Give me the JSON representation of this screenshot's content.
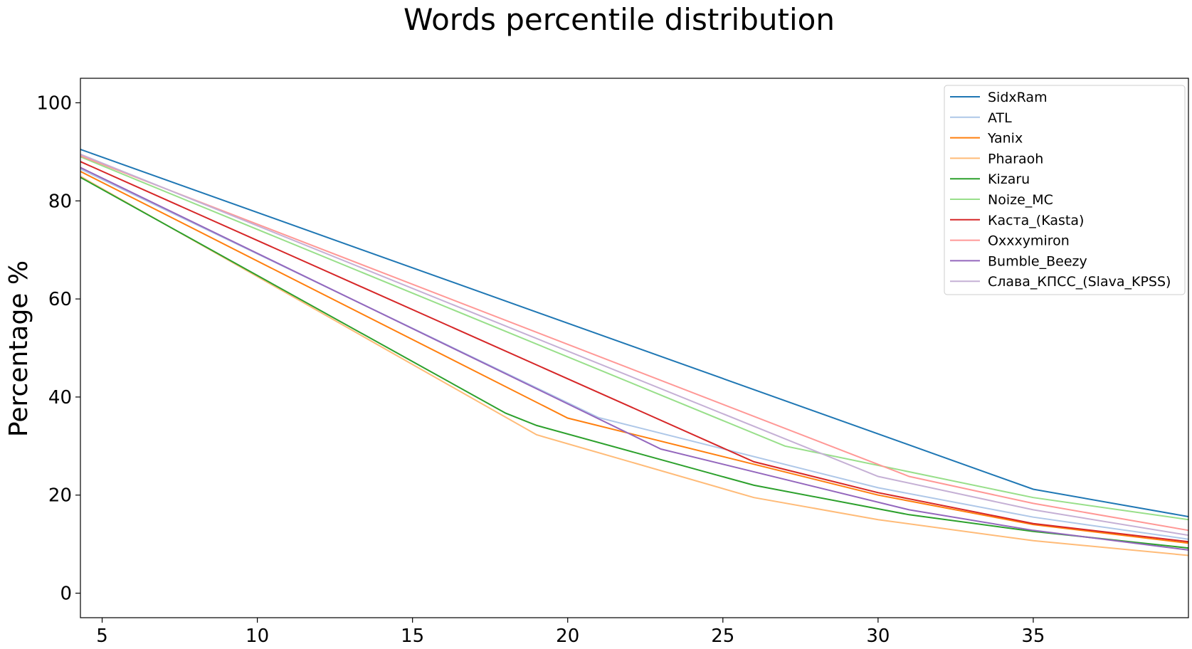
{
  "chart_data": {
    "type": "line",
    "title": "Words percentile distribution",
    "xlabel": "",
    "ylabel": "Percentage %",
    "xlim": [
      4.3,
      40
    ],
    "ylim": [
      -5,
      105
    ],
    "xticks": [
      5,
      10,
      15,
      20,
      25,
      30,
      35
    ],
    "yticks": [
      0,
      20,
      40,
      60,
      80,
      100
    ],
    "grid": false,
    "legend_position": "top-right",
    "series": [
      {
        "name": "SidxRam",
        "color": "#1f77b4",
        "points": [
          [
            4.3,
            90.5
          ],
          [
            35,
            21.2
          ],
          [
            40,
            15.6
          ]
        ]
      },
      {
        "name": "ATL",
        "color": "#aec7e8",
        "points": [
          [
            4.3,
            86.5
          ],
          [
            21,
            35.8
          ],
          [
            30,
            21.5
          ],
          [
            35,
            15.5
          ],
          [
            40,
            11.0
          ]
        ]
      },
      {
        "name": "Yanix",
        "color": "#ff7f0e",
        "points": [
          [
            4.3,
            86.0
          ],
          [
            20,
            35.7
          ],
          [
            30,
            20.0
          ],
          [
            35,
            14.0
          ],
          [
            40,
            10.2
          ]
        ]
      },
      {
        "name": "Pharaoh",
        "color": "#ffbb78",
        "points": [
          [
            4.3,
            85.0
          ],
          [
            19,
            32.3
          ],
          [
            26,
            19.5
          ],
          [
            30,
            15.0
          ],
          [
            35,
            10.7
          ],
          [
            40,
            7.7
          ]
        ]
      },
      {
        "name": "Kizaru",
        "color": "#2ca02c",
        "points": [
          [
            4.3,
            84.8
          ],
          [
            18,
            36.7
          ],
          [
            19,
            34.2
          ],
          [
            26,
            22.0
          ],
          [
            31,
            16.0
          ],
          [
            35,
            12.6
          ],
          [
            40,
            9.2
          ]
        ]
      },
      {
        "name": "Noize_MC",
        "color": "#98df8a",
        "points": [
          [
            4.3,
            89.0
          ],
          [
            27,
            30.0
          ],
          [
            35,
            19.5
          ],
          [
            40,
            15.0
          ]
        ]
      },
      {
        "name": "Каста_(Kasta)",
        "color": "#d62728",
        "points": [
          [
            4.3,
            88.0
          ],
          [
            26,
            26.8
          ],
          [
            30,
            20.5
          ],
          [
            35,
            14.2
          ],
          [
            40,
            10.5
          ]
        ]
      },
      {
        "name": "Oxxxymiron",
        "color": "#ff9896",
        "points": [
          [
            4.3,
            89.2
          ],
          [
            31,
            23.8
          ],
          [
            35,
            18.3
          ],
          [
            40,
            12.8
          ]
        ]
      },
      {
        "name": "Bumble_Beezy",
        "color": "#9467bd",
        "points": [
          [
            4.3,
            86.8
          ],
          [
            23,
            29.4
          ],
          [
            31,
            17.0
          ],
          [
            35,
            12.8
          ],
          [
            40,
            8.8
          ]
        ]
      },
      {
        "name": "Слава_КПСС_(Slava_KPSS)",
        "color": "#c5b0d5",
        "points": [
          [
            4.3,
            89.5
          ],
          [
            30,
            23.8
          ],
          [
            35,
            17.0
          ],
          [
            40,
            11.8
          ]
        ]
      }
    ]
  }
}
